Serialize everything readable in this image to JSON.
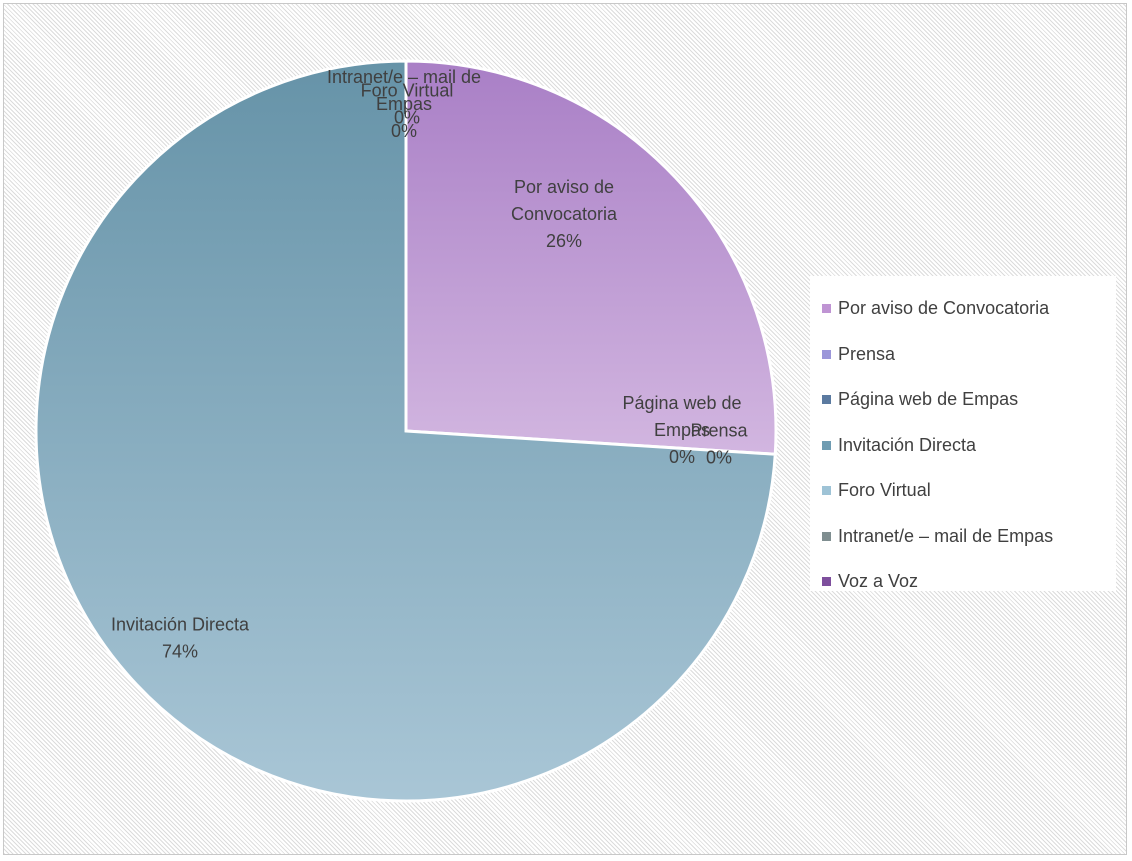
{
  "chart_data": {
    "type": "pie",
    "title": "",
    "legend_position": "right",
    "start_angle_deg": 0,
    "direction": "clockwise",
    "slices": [
      {
        "name": "Por aviso de Convocatoria",
        "value": 26,
        "label_lines": [
          "Por aviso de",
          "Convocatoria",
          "26%"
        ],
        "color_inner": "#d2b6e0",
        "color_outer": "#a97fc6",
        "swatch": "#bf94d3"
      },
      {
        "name": "Prensa",
        "value": 0,
        "label_lines": [
          "Prensa",
          "0%"
        ],
        "color_inner": "#9c9ad6",
        "color_outer": "#8f8cd0",
        "swatch": "#9b96d9"
      },
      {
        "name": "Página web de Empas",
        "value": 0,
        "label_lines": [
          "Página web de",
          "Empas",
          "0%"
        ],
        "color_inner": "#5f7b9e",
        "color_outer": "#5a7598",
        "swatch": "#5b7aa0"
      },
      {
        "name": "Invitación Directa",
        "value": 74,
        "label_lines": [
          "Invitación Directa",
          "74%"
        ],
        "color_inner": "#a9c6d6",
        "color_outer": "#6693a8",
        "swatch": "#6f9cb2"
      },
      {
        "name": "Foro Virtual",
        "value": 0,
        "label_lines": [
          "Foro Virtual",
          "0%"
        ],
        "color_inner": "#9ec0d0",
        "color_outer": "#9ec0d0",
        "swatch": "#9ec3d6"
      },
      {
        "name": "Intranet/e – mail de Empas",
        "value": 0,
        "label_lines": [
          "Intranet/e – mail de",
          "Empas",
          "0%"
        ],
        "color_inner": "#7d8c8e",
        "color_outer": "#7d8c8e",
        "swatch": "#7f8e90"
      },
      {
        "name": "Voz a Voz",
        "value": 0,
        "label_lines": [
          "Voz a Voz"
        ],
        "color_inner": "#7d4d9c",
        "color_outer": "#7d4d9c",
        "swatch": "#7e4f9d"
      }
    ]
  }
}
